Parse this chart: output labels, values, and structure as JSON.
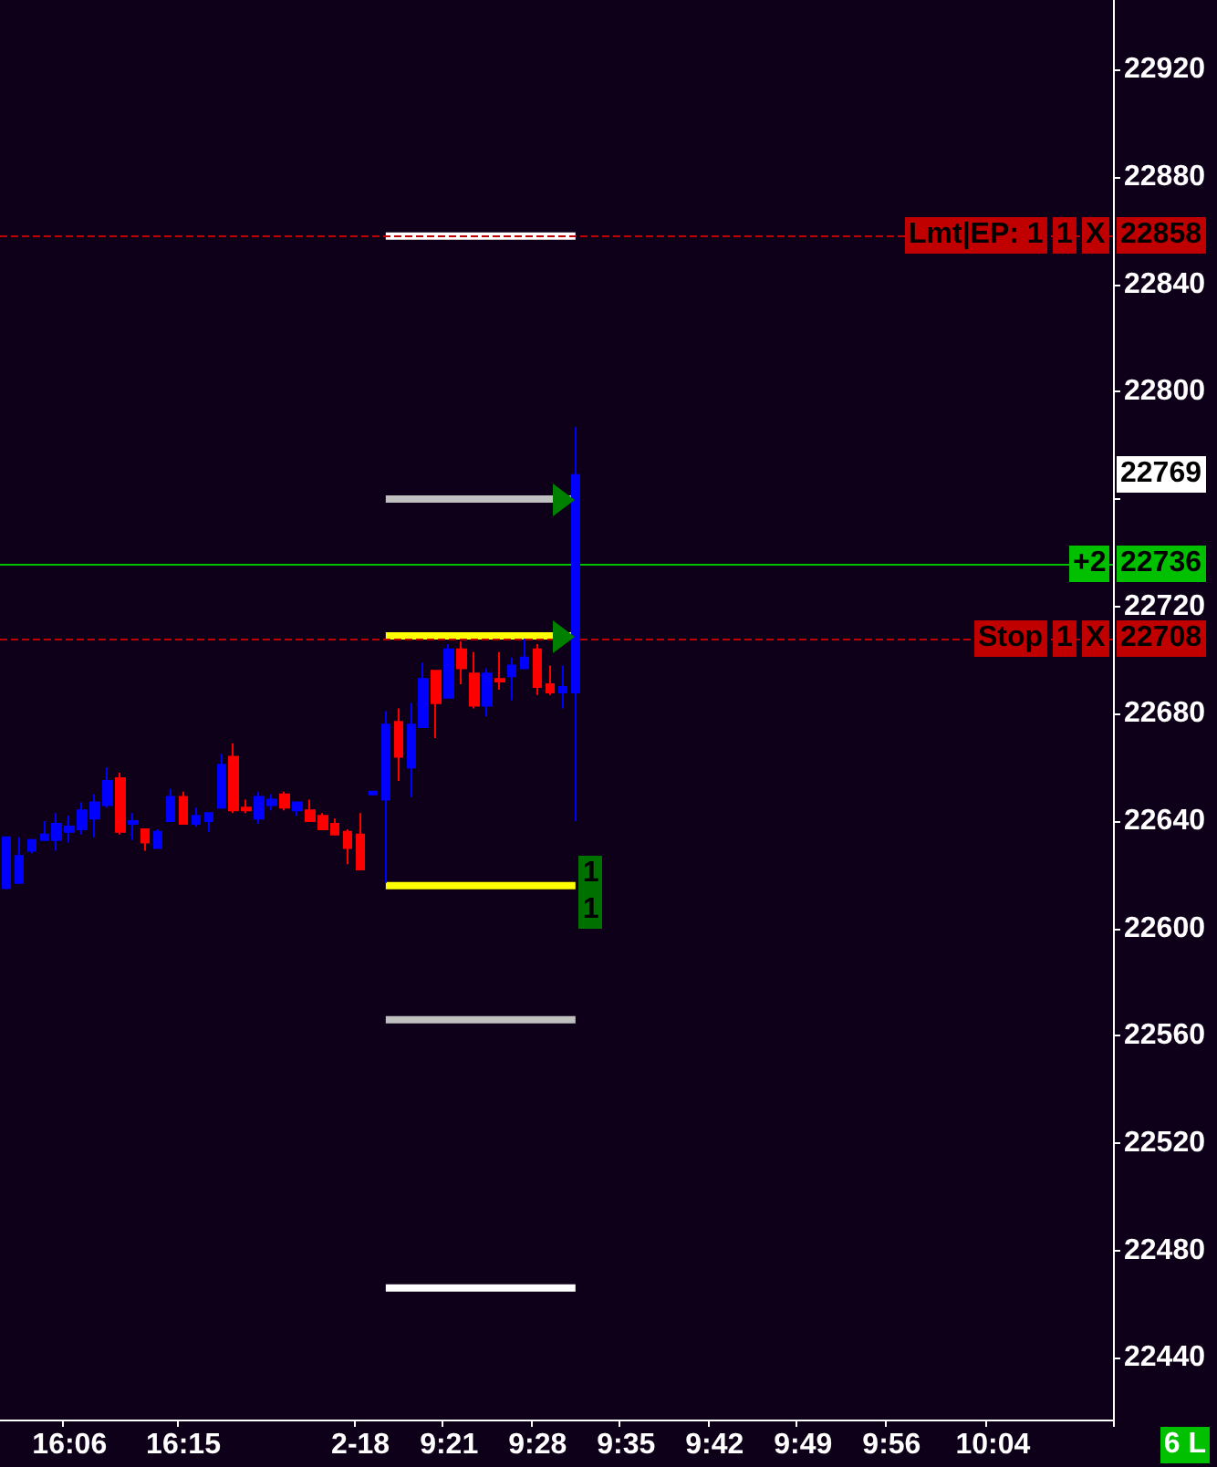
{
  "chart_data": {
    "type": "candlestick",
    "categories": [
      null,
      null,
      null,
      null,
      null,
      "16:06",
      null,
      null,
      null,
      null,
      null,
      null,
      null,
      null,
      "16:15",
      null,
      null,
      null,
      null,
      null,
      null,
      null,
      null,
      null,
      null,
      null,
      null,
      null,
      "2-18",
      null,
      null,
      null,
      null,
      null,
      null,
      "9:21",
      null,
      null,
      null,
      null,
      null,
      null,
      "9:28",
      null,
      null,
      null,
      null,
      null,
      null,
      "9:35",
      null,
      null,
      null,
      null,
      null,
      null,
      "9:42",
      null,
      null,
      null,
      null,
      null,
      null,
      "9:49",
      null,
      null,
      null,
      null,
      null,
      null,
      "9:56",
      null,
      null,
      null,
      null,
      null,
      null,
      null,
      "10:04",
      null,
      null,
      null,
      null,
      null,
      null,
      null,
      null,
      null
    ],
    "ohlc": [
      [
        22615,
        22634,
        22615,
        22634
      ],
      [
        22617,
        22634,
        22617,
        22627
      ],
      [
        22629,
        22633,
        22628,
        22633
      ],
      [
        22633,
        22640,
        22633,
        22635
      ],
      [
        22633,
        22643,
        22629,
        22639
      ],
      [
        22636,
        22642,
        22632,
        22638
      ],
      [
        22637,
        22647,
        22635,
        22644
      ],
      [
        22641,
        22650,
        22634,
        22647
      ],
      [
        22646,
        22660,
        22645,
        22655
      ],
      [
        22656,
        22658,
        22635,
        22636
      ],
      [
        22639,
        22643,
        22633,
        22640
      ],
      [
        22637,
        22637,
        22629,
        22632
      ],
      [
        22630,
        22637,
        22630,
        22636
      ],
      [
        22640,
        22652,
        22640,
        22649
      ],
      [
        22649,
        22651,
        22639,
        22639
      ],
      [
        22639,
        22645,
        22638,
        22642
      ],
      [
        22640,
        22643,
        22636,
        22643
      ],
      [
        22645,
        22665,
        22645,
        22661
      ],
      [
        22664,
        22669,
        22643,
        22644
      ],
      [
        22645,
        22648,
        22643,
        22644
      ],
      [
        22641,
        22651,
        22639,
        22649
      ],
      [
        22646,
        22650,
        22644,
        22648
      ],
      [
        22650,
        22651,
        22644,
        22645
      ],
      [
        22644,
        22647,
        22642,
        22647
      ],
      [
        22644,
        22648,
        22640,
        22640
      ],
      [
        22642,
        22643,
        22637,
        22637
      ],
      [
        22639,
        22641,
        22635,
        22635
      ],
      [
        22636,
        22637,
        22624,
        22630
      ],
      [
        22635,
        22643,
        22622,
        22622
      ],
      [
        22650,
        22651,
        22650,
        22651
      ],
      [
        22648,
        22681,
        22617,
        22676
      ],
      [
        22677,
        22682,
        22655,
        22664
      ],
      [
        22660,
        22684,
        22649,
        22676
      ],
      [
        22675,
        22699,
        22675,
        22693
      ],
      [
        22696,
        22696,
        22671,
        22684
      ],
      [
        22686,
        22706,
        22686,
        22704
      ],
      [
        22704,
        22707,
        22691,
        22697
      ],
      [
        22695,
        22703,
        22682,
        22683
      ],
      [
        22683,
        22697,
        22679,
        22695
      ],
      [
        22693,
        22703,
        22689,
        22692
      ],
      [
        22694,
        22701,
        22685,
        22698
      ],
      [
        22697,
        22708,
        22697,
        22701
      ],
      [
        22704,
        22706,
        22687,
        22690
      ],
      [
        22691,
        22698,
        22687,
        22688
      ],
      [
        22688,
        22698,
        22682,
        22690
      ],
      [
        22688,
        22787,
        22640,
        22769
      ],
      null,
      null,
      null,
      null,
      null,
      null,
      null,
      null,
      null,
      null,
      null,
      null,
      null,
      null,
      null,
      null,
      null,
      null,
      null,
      null,
      null,
      null,
      null,
      null,
      null,
      null,
      null,
      null,
      null,
      null,
      null,
      null,
      null,
      null,
      null,
      null,
      null,
      null,
      null,
      null,
      null,
      null
    ],
    "colors": [
      "#0000ff",
      "#0000ff",
      "#0000ff",
      "#0000ff",
      "#0000ff",
      "#0000ff",
      "#0000ff",
      "#0000ff",
      "#0000ff",
      "#ff0000",
      "#0000ff",
      "#ff0000",
      "#0000ff",
      "#0000ff",
      "#ff0000",
      "#0000ff",
      "#0000ff",
      "#0000ff",
      "#ff0000",
      "#ff0000",
      "#0000ff",
      "#0000ff",
      "#ff0000",
      "#0000ff",
      "#ff0000",
      "#ff0000",
      "#ff0000",
      "#ff0000",
      "#ff0000",
      "#0000ff",
      "#0000ff",
      "#ff0000",
      "#0000ff",
      "#0000ff",
      "#ff0000",
      "#0000ff",
      "#ff0000",
      "#ff0000",
      "#0000ff",
      "#ff0000",
      "#0000ff",
      "#0000ff",
      "#ff0000",
      "#ff0000",
      "#0000ff",
      "#0000ff",
      null,
      null,
      null,
      null,
      null,
      null,
      null,
      null,
      null,
      null,
      null,
      null,
      null,
      null,
      null,
      null,
      null,
      null,
      null,
      null,
      null,
      null,
      null,
      null,
      null,
      null,
      null,
      null,
      null,
      null,
      null,
      null,
      null,
      null,
      null,
      null,
      null,
      null,
      null,
      null,
      null,
      null
    ],
    "value_labels": [
      null,
      null,
      null,
      null,
      null,
      null,
      null,
      null,
      null,
      null,
      null,
      null,
      null,
      null,
      null,
      null,
      null,
      null,
      null,
      null,
      null,
      null,
      null,
      null,
      null,
      null,
      null,
      null,
      null,
      null,
      null,
      null,
      null,
      null,
      null,
      null,
      null,
      null,
      null,
      null,
      null,
      null,
      null,
      null,
      null,
      "22769",
      null,
      null,
      null,
      null,
      null,
      null,
      null,
      null,
      null,
      null,
      null,
      null,
      null,
      null,
      null,
      null,
      null,
      null,
      null,
      null,
      null,
      null,
      null,
      null,
      null,
      null,
      null,
      null,
      null,
      null,
      null,
      null,
      null,
      null,
      null,
      null,
      null,
      null,
      null,
      null,
      null,
      null
    ],
    "series": [
      {
        "type": "line",
        "color": "#c0c0c0",
        "values": [
          null,
          null,
          null,
          null,
          null,
          null,
          null,
          null,
          null,
          null,
          null,
          null,
          null,
          null,
          null,
          null,
          null,
          null,
          null,
          null,
          null,
          null,
          null,
          null,
          null,
          null,
          null,
          null,
          null,
          null,
          22760,
          22760,
          22760,
          22760,
          22760,
          22760,
          22760,
          22760,
          22760,
          22760,
          22760,
          22760,
          22760,
          22760,
          22760,
          22760,
          null,
          null,
          null,
          null,
          null,
          null,
          null,
          null,
          null,
          null,
          null,
          null,
          null,
          null,
          null,
          null,
          null,
          null,
          null,
          null,
          null,
          null,
          null,
          null,
          null,
          null,
          null,
          null,
          null,
          null,
          null,
          null,
          null,
          null,
          null,
          null,
          null,
          null,
          null,
          null,
          null,
          null
        ]
      },
      {
        "type": "line",
        "color": "#ffff00",
        "values": [
          null,
          null,
          null,
          null,
          null,
          null,
          null,
          null,
          null,
          null,
          null,
          null,
          null,
          null,
          null,
          null,
          null,
          null,
          null,
          null,
          null,
          null,
          null,
          null,
          null,
          null,
          null,
          null,
          null,
          null,
          22709,
          22709,
          22709,
          22709,
          22709,
          22709,
          22709,
          22709,
          22709,
          22709,
          22709,
          22709,
          22709,
          22709,
          22709,
          22709,
          null,
          null,
          null,
          null,
          null,
          null,
          null,
          null,
          null,
          null,
          null,
          null,
          null,
          null,
          null,
          null,
          null,
          null,
          null,
          null,
          null,
          null,
          null,
          null,
          null,
          null,
          null,
          null,
          null,
          null,
          null,
          null,
          null,
          null,
          null,
          null,
          null,
          null,
          null,
          null,
          null,
          null
        ]
      },
      {
        "type": "line",
        "color": "#ffffff",
        "values": [
          null,
          null,
          null,
          null,
          null,
          null,
          null,
          null,
          null,
          null,
          null,
          null,
          null,
          null,
          null,
          null,
          null,
          null,
          null,
          null,
          null,
          null,
          null,
          null,
          null,
          null,
          null,
          null,
          null,
          null,
          22858,
          22858,
          22858,
          22858,
          22858,
          22858,
          22858,
          22858,
          22858,
          22858,
          22858,
          22858,
          22858,
          22858,
          22858,
          22858,
          null,
          null,
          null,
          null,
          null,
          null,
          null,
          null,
          null,
          null,
          null,
          null,
          null,
          null,
          null,
          null,
          null,
          null,
          null,
          null,
          null,
          null,
          null,
          null,
          null,
          null,
          null,
          null,
          null,
          null,
          null,
          null,
          null,
          null,
          null,
          null,
          null,
          null,
          null,
          null,
          null,
          null
        ]
      },
      {
        "type": "line",
        "color": "#ffff00",
        "values": [
          null,
          null,
          null,
          null,
          null,
          null,
          null,
          null,
          null,
          null,
          null,
          null,
          null,
          null,
          null,
          null,
          null,
          null,
          null,
          null,
          null,
          null,
          null,
          null,
          null,
          null,
          null,
          null,
          null,
          null,
          22616,
          22616,
          22616,
          22616,
          22616,
          22616,
          22616,
          22616,
          22616,
          22616,
          22616,
          22616,
          22616,
          22616,
          22616,
          22616,
          null,
          null,
          null,
          null,
          null,
          null,
          null,
          null,
          null,
          null,
          null,
          null,
          null,
          null,
          null,
          null,
          null,
          null,
          null,
          null,
          null,
          null,
          null,
          null,
          null,
          null,
          null,
          null,
          null,
          null,
          null,
          null,
          null,
          null,
          null,
          null,
          null,
          null,
          null,
          null,
          null,
          null
        ]
      },
      {
        "type": "line",
        "color": "#c0c0c0",
        "values": [
          null,
          null,
          null,
          null,
          null,
          null,
          null,
          null,
          null,
          null,
          null,
          null,
          null,
          null,
          null,
          null,
          null,
          null,
          null,
          null,
          null,
          null,
          null,
          null,
          null,
          null,
          null,
          null,
          null,
          null,
          22566,
          22566,
          22566,
          22566,
          22566,
          22566,
          22566,
          22566,
          22566,
          22566,
          22566,
          22566,
          22566,
          22566,
          22566,
          22566,
          null,
          null,
          null,
          null,
          null,
          null,
          null,
          null,
          null,
          null,
          null,
          null,
          null,
          null,
          null,
          null,
          null,
          null,
          null,
          null,
          null,
          null,
          null,
          null,
          null,
          null,
          null,
          null,
          null,
          null,
          null,
          null,
          null,
          null,
          null,
          null,
          null,
          null,
          null,
          null,
          null,
          null
        ]
      },
      {
        "type": "line",
        "color": "#ffffff",
        "values": [
          null,
          null,
          null,
          null,
          null,
          null,
          null,
          null,
          null,
          null,
          null,
          null,
          null,
          null,
          null,
          null,
          null,
          null,
          null,
          null,
          null,
          null,
          null,
          null,
          null,
          null,
          null,
          null,
          null,
          null,
          22466,
          22466,
          22466,
          22466,
          22466,
          22466,
          22466,
          22466,
          22466,
          22466,
          22466,
          22466,
          22466,
          22466,
          22466,
          22466,
          null,
          null,
          null,
          null,
          null,
          null,
          null,
          null,
          null,
          null,
          null,
          null,
          null,
          null,
          null,
          null,
          null,
          null,
          null,
          null,
          null,
          null,
          null,
          null,
          null,
          null,
          null,
          null,
          null,
          null,
          null,
          null,
          null,
          null,
          null,
          null,
          null,
          null,
          null,
          null,
          null,
          null
        ]
      }
    ],
    "marker": "none",
    "ylim": [
      22417,
      22946
    ],
    "yticks": [
      22440,
      22480,
      22520,
      22560,
      22600,
      22640,
      22680,
      22720,
      {
        "value": 22760,
        "label": null
      },
      22800,
      22840,
      22880,
      22920
    ],
    "grid": false,
    "ref_lines": [
      {
        "axis": "y",
        "value": 22858,
        "label": "22858",
        "color": "#c00000",
        "line_style": "dashed"
      },
      {
        "axis": "y",
        "value": 22736,
        "label": "22736",
        "color": "#00c000",
        "line_style": "solid"
      },
      {
        "axis": "y",
        "value": 22708,
        "label": "22708",
        "color": "#c00000",
        "line_style": "dashed"
      }
    ],
    "annotations": [
      {
        "text": "Lmt|EP: 1",
        "y": 22858
      },
      {
        "text": "1",
        "y": 22858
      },
      {
        "text": "X",
        "y": 22858
      },
      {
        "text": "+2",
        "y": 22736
      },
      {
        "text": "Stop",
        "y": 22708
      },
      {
        "text": "1",
        "y": 22708
      },
      {
        "text": "X",
        "y": 22708
      },
      {
        "text": "1",
        "y": 22620
      },
      {
        "text": "1",
        "y": 22607
      },
      "6 L"
    ]
  }
}
